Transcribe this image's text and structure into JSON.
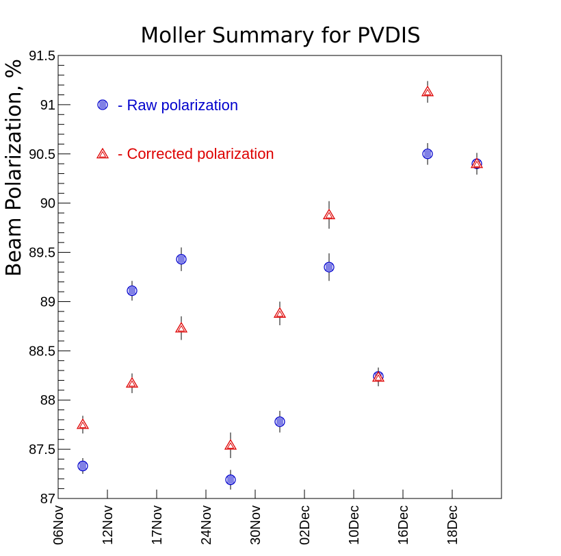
{
  "chart_data": {
    "type": "scatter",
    "title": "Moller Summary for PVDIS",
    "ylabel": "Beam Polarization, %",
    "xlabel": "",
    "categories": [
      "06Nov",
      "12Nov",
      "17Nov",
      "24Nov",
      "30Nov",
      "02Dec",
      "10Dec",
      "16Dec",
      "18Dec"
    ],
    "ylim": [
      87,
      91.5
    ],
    "yticks": [
      "87",
      "87.5",
      "88",
      "88.5",
      "89",
      "89.5",
      "90",
      "90.5",
      "91",
      "91.5"
    ],
    "grid": false,
    "legend_position": "top-left",
    "series": [
      {
        "name": "- Raw polarization",
        "marker": "circle",
        "color": "#0000cc",
        "values": [
          87.33,
          89.11,
          89.43,
          87.19,
          87.78,
          89.35,
          88.24,
          90.5,
          90.4
        ],
        "errors": [
          0.08,
          0.1,
          0.12,
          0.1,
          0.11,
          0.14,
          0.09,
          0.11,
          0.11
        ]
      },
      {
        "name": "- Corrected polarization",
        "marker": "triangle",
        "color": "#dd0000",
        "values": [
          87.75,
          88.17,
          88.73,
          87.54,
          88.88,
          89.88,
          88.23,
          91.13,
          90.4
        ],
        "errors": [
          0.09,
          0.1,
          0.12,
          0.13,
          0.12,
          0.14,
          0.09,
          0.11,
          0.11
        ]
      }
    ]
  }
}
